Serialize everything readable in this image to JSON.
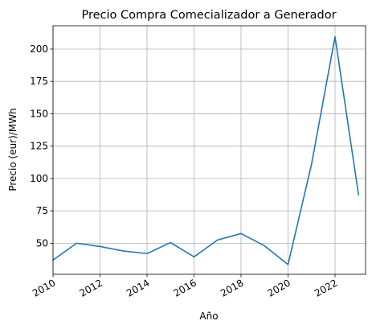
{
  "chart_data": {
    "type": "line",
    "title": "Precio Compra Comecializador a Generador",
    "xlabel": "Año",
    "ylabel": "Precio (eur)/MWh",
    "xlim": [
      2010,
      2023.3
    ],
    "ylim": [
      26,
      218
    ],
    "xticks": [
      2010,
      2012,
      2014,
      2016,
      2018,
      2020,
      2022
    ],
    "xtick_labels": [
      "2010",
      "2012",
      "2014",
      "2016",
      "2018",
      "2020",
      "2022"
    ],
    "yticks": [
      50,
      75,
      100,
      125,
      150,
      175,
      200
    ],
    "ytick_labels": [
      "50",
      "75",
      "100",
      "125",
      "150",
      "175",
      "200"
    ],
    "grid": true,
    "series": [
      {
        "color": "#1f77b4",
        "x": [
          2010,
          2011,
          2012,
          2013,
          2014,
          2015,
          2016,
          2017,
          2018,
          2019,
          2020,
          2021,
          2022,
          2023
        ],
        "y": [
          37,
          50,
          47.5,
          44,
          42,
          50.5,
          39.5,
          52.5,
          57.5,
          48,
          33.5,
          111,
          209.5,
          87.5
        ]
      }
    ]
  }
}
